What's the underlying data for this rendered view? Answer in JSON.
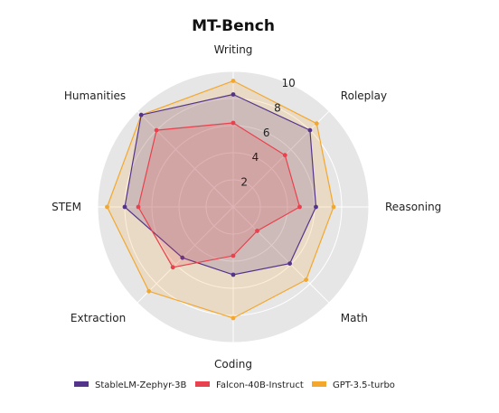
{
  "chart_data": {
    "type": "radar",
    "title": "MT-Bench",
    "axes": [
      "Writing",
      "Roleplay",
      "Reasoning",
      "Math",
      "Coding",
      "Extraction",
      "STEM",
      "Humanities"
    ],
    "rlim": [
      0,
      10
    ],
    "ticks": [
      "2",
      "4",
      "6",
      "8",
      "10"
    ],
    "grid": true,
    "legend_position": "bottom",
    "series": [
      {
        "name": "StableLM-Zephyr-3B",
        "color": "#54348a",
        "values": [
          8.3,
          8.0,
          6.1,
          5.9,
          5.0,
          5.3,
          8.0,
          9.6
        ]
      },
      {
        "name": "Falcon-40B-Instruct",
        "color": "#e9414d",
        "values": [
          6.2,
          5.4,
          4.9,
          2.5,
          3.6,
          6.3,
          7.0,
          8.0
        ]
      },
      {
        "name": "GPT-3.5-turbo",
        "color": "#f3a72d",
        "values": [
          9.3,
          8.7,
          7.4,
          7.6,
          8.2,
          8.8,
          9.3,
          9.6
        ]
      }
    ]
  }
}
